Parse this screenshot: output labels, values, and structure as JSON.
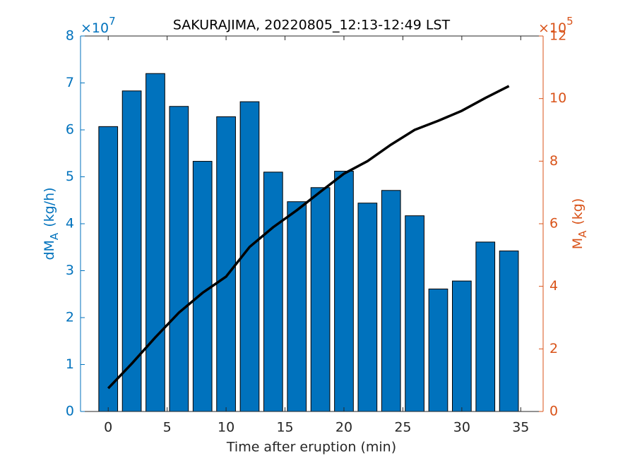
{
  "chart_data": {
    "type": "combo",
    "title": "SAKURAJIMA, 20220805_12:13-12:49 LST",
    "x_label": "Time after eruption (min)",
    "y_label": [
      "dM",
      "A",
      "(kg/h)"
    ],
    "y2_label": [
      "M",
      "A",
      "(kg)"
    ],
    "y_multiplier": [
      "×10",
      "7"
    ],
    "y2_multiplier": [
      "×10",
      "5"
    ],
    "xlim": [
      -2.35,
      36.9
    ],
    "xticks": [
      0,
      5,
      10,
      15,
      20,
      25,
      30,
      35
    ],
    "ylim": [
      0,
      8
    ],
    "yticks": [
      0,
      1,
      2,
      3,
      4,
      5,
      6,
      7,
      8
    ],
    "y2lim": [
      0,
      12
    ],
    "y2ticks": [
      0,
      2,
      4,
      6,
      8,
      10,
      12
    ],
    "grid": false,
    "series": [
      {
        "type": "bar",
        "color": "#0072BD",
        "x": [
          0,
          2,
          4,
          6,
          8,
          10,
          12,
          14,
          16,
          18,
          20,
          22,
          24,
          26,
          28,
          30,
          32,
          34
        ],
        "values": [
          6.07,
          6.83,
          7.2,
          6.5,
          5.33,
          6.28,
          6.6,
          5.1,
          4.47,
          4.77,
          5.12,
          4.44,
          4.71,
          4.17,
          2.61,
          2.78,
          3.61,
          3.42
        ]
      },
      {
        "type": "line",
        "axis": "y2",
        "color": "#000000",
        "x": [
          0,
          2,
          4,
          6,
          8,
          10,
          12,
          14,
          16,
          18,
          20,
          22,
          24,
          26,
          28,
          30,
          32,
          34
        ],
        "values": [
          0.74,
          1.53,
          2.37,
          3.16,
          3.79,
          4.31,
          5.26,
          5.89,
          6.43,
          7.02,
          7.6,
          8.0,
          8.53,
          9.0,
          9.29,
          9.61,
          10.02,
          10.4
        ]
      }
    ]
  }
}
